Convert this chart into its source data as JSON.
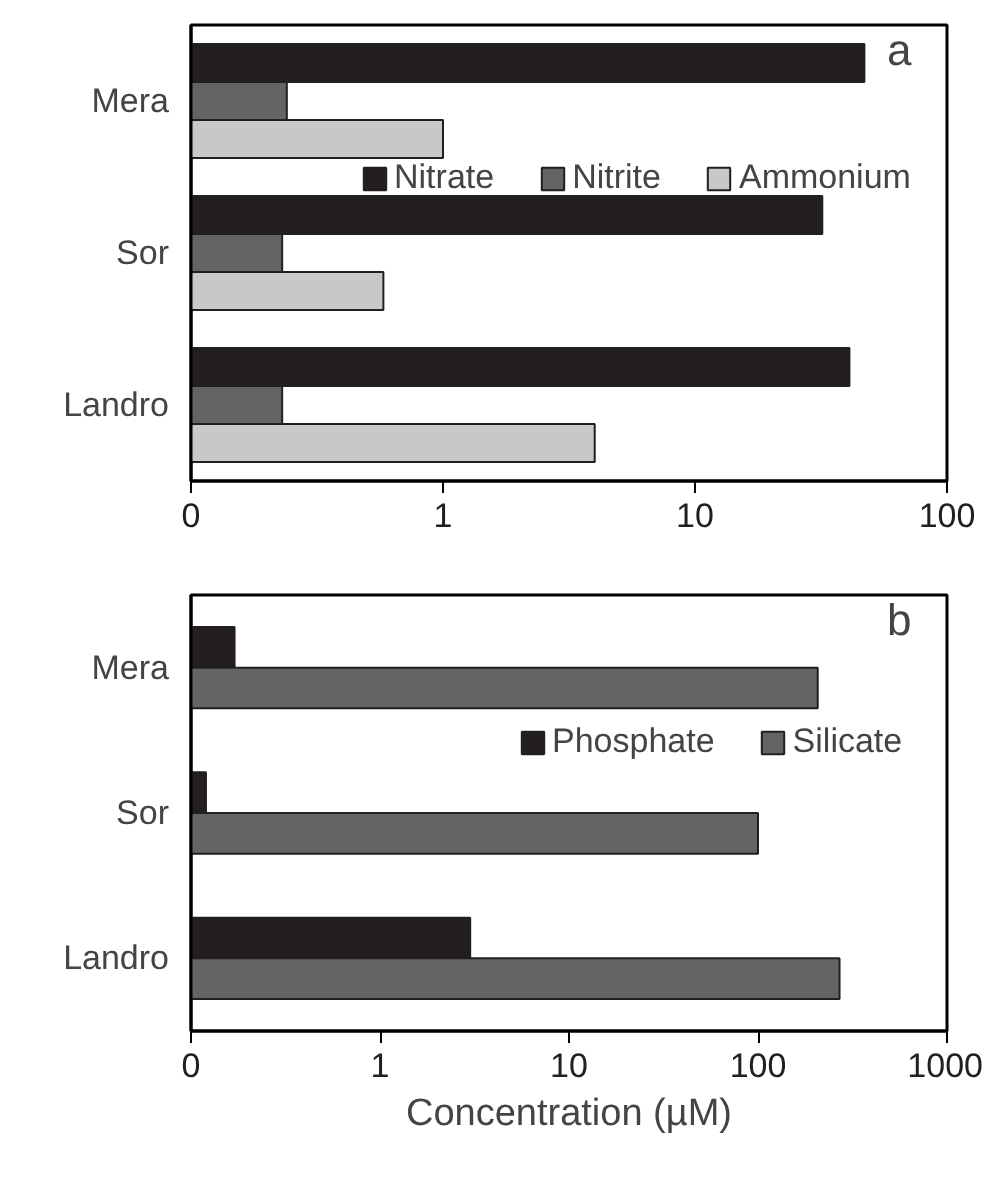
{
  "chart_data": [
    {
      "type": "bar",
      "orientation": "horizontal",
      "log": "x",
      "categories": [
        "Mera",
        "Sor",
        "Landro"
      ],
      "series": [
        {
          "name": "Nitrate",
          "color": "#231f20",
          "values": [
            47,
            32,
            41
          ]
        },
        {
          "name": "Nitrite",
          "color": "#636466",
          "values": [
            0.24,
            0.23,
            0.23
          ]
        },
        {
          "name": "Ammonium",
          "color": "#c8c8c8",
          "values": [
            1.0,
            0.58,
            4.0
          ]
        }
      ],
      "xlim": [
        0.1,
        100
      ],
      "xticks": [
        {
          "value": 0.1,
          "label": "0"
        },
        1,
        10,
        100
      ],
      "grid": false,
      "legend": "right",
      "annotations": [
        "a"
      ]
    },
    {
      "type": "bar",
      "orientation": "horizontal",
      "log": "x",
      "categories": [
        "Mera",
        "Sor",
        "Landro"
      ],
      "series": [
        {
          "name": "Phosphate",
          "color": "#231f20",
          "values": [
            0.17,
            0.12,
            3.0
          ]
        },
        {
          "name": "Silicate",
          "color": "#636466",
          "values": [
            207,
            100,
            270
          ]
        }
      ],
      "xlim": [
        0.1,
        1000
      ],
      "xticks": [
        {
          "value": 0.1,
          "label": "0"
        },
        1,
        10,
        100,
        1000
      ],
      "xlabel": "Concentration (µM)",
      "grid": false,
      "legend": "right",
      "annotations": [
        "b"
      ]
    }
  ]
}
